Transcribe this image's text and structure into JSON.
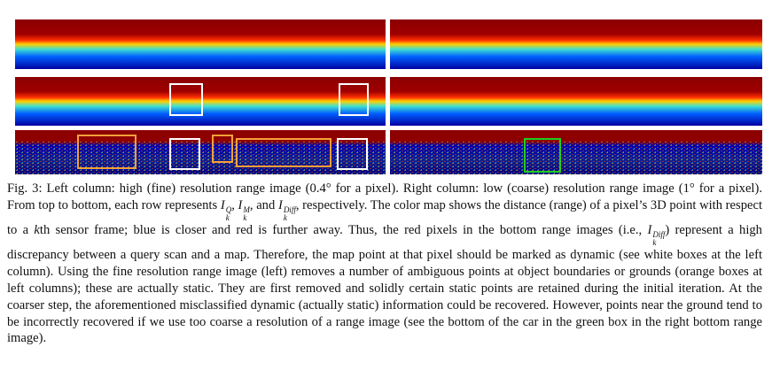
{
  "caption": {
    "parts": [
      {
        "text": "Fig. 3: Left column: high (fine) resolution range image (0.4° for a pixel). Right column: low (coarse) resolution range image (1° for a pixel). From top to bottom, each row represents "
      },
      {
        "math": {
          "base": "I",
          "sub": "k",
          "sup": "Q"
        }
      },
      {
        "text": ", "
      },
      {
        "math": {
          "base": "I",
          "sub": "k",
          "sup": "M"
        }
      },
      {
        "text": ", and "
      },
      {
        "math": {
          "base": "I",
          "sub": "k",
          "sup": "Diff"
        }
      },
      {
        "text": ", respectively. The color map shows the distance (range) of a pixel’s 3D point with respect to a "
      },
      {
        "italic": "k"
      },
      {
        "text": "th sensor frame; blue is closer and red is further away. Thus, the red pixels in the bottom range images (i.e., "
      },
      {
        "math": {
          "base": "I",
          "sub": "k",
          "sup": "Diff"
        }
      },
      {
        "text": ") represent a high discrepancy between a query scan and a map. Therefore, the map point at that pixel should be marked as dynamic (see white boxes at the left column). Using the fine resolution range image (left) removes a number of ambiguous points at object boundaries or grounds (orange boxes at left columns); these are actually static. They are first removed and solidly certain static points are retained during the initial iteration. At the coarser step, the aforementioned misclassified dynamic (actually static) information could be recovered. However, points near the ground tend to be incorrectly recovered if we use too coarse a resolution of a range image (see the bottom of the car in the green box in the right bottom range image)."
      }
    ]
  }
}
